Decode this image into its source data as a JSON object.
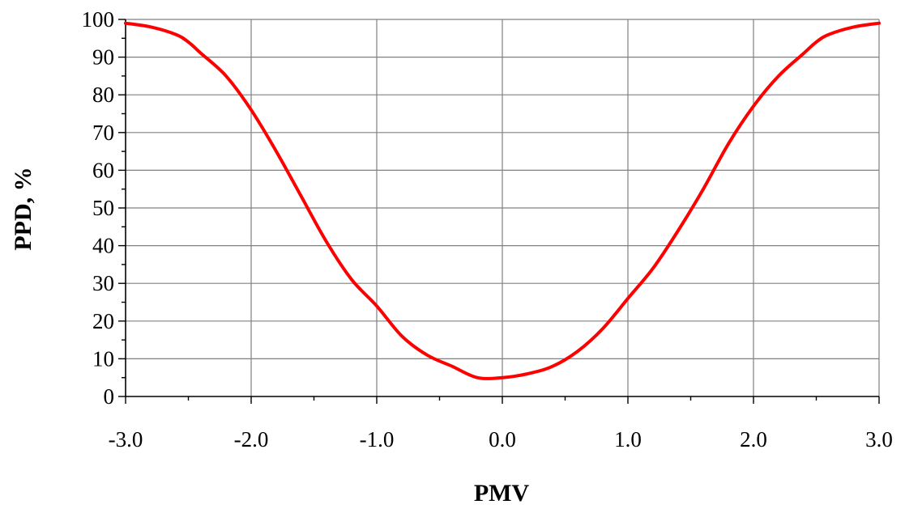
{
  "chart_data": {
    "type": "line",
    "title": "",
    "xlabel": "PMV",
    "ylabel": "PPD, %",
    "xlim": [
      -3.0,
      3.0
    ],
    "ylim": [
      0,
      100
    ],
    "x_ticks": [
      "-3.0",
      "-2.0",
      "-1.0",
      "0.0",
      "1.0",
      "2.0",
      "3.0"
    ],
    "x_tick_values": [
      -3,
      -2,
      -1,
      0,
      1,
      2,
      3
    ],
    "y_ticks": [
      "0",
      "10",
      "20",
      "30",
      "40",
      "50",
      "60",
      "70",
      "80",
      "90",
      "100"
    ],
    "y_tick_values": [
      0,
      10,
      20,
      30,
      40,
      50,
      60,
      70,
      80,
      90,
      100
    ],
    "grid": true,
    "legend": "none",
    "series": [
      {
        "color": "#ff0000",
        "x": [
          -3.0,
          -2.8,
          -2.6,
          -2.5,
          -2.4,
          -2.2,
          -2.0,
          -1.8,
          -1.6,
          -1.4,
          -1.2,
          -1.0,
          -0.8,
          -0.6,
          -0.4,
          -0.2,
          0.0,
          0.2,
          0.4,
          0.6,
          0.8,
          1.0,
          1.2,
          1.4,
          1.6,
          1.8,
          2.0,
          2.2,
          2.4,
          2.5,
          2.6,
          2.8,
          3.0
        ],
        "y": [
          99,
          98,
          96,
          94,
          91,
          85,
          76,
          65,
          53,
          41,
          31,
          24,
          16,
          11,
          8,
          5,
          5,
          6,
          8,
          12,
          18,
          26,
          34,
          44,
          55,
          67,
          77,
          85,
          91,
          94,
          96,
          98,
          99
        ]
      }
    ]
  }
}
